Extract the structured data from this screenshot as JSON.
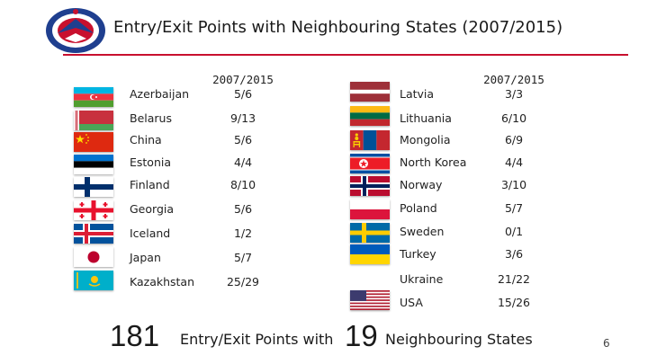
{
  "title": "Entry/Exit Points with Neighbouring States (2007/2015)",
  "column_header": "2007/2015",
  "left_column": [
    {
      "country": "Azerbaijan",
      "value": "5/6",
      "flag": "azerbaijan-flag"
    },
    {
      "country": "Belarus",
      "value": "9/13",
      "flag": "belarus-flag"
    },
    {
      "country": "China",
      "value": "5/6",
      "flag": "china-flag"
    },
    {
      "country": "Estonia",
      "value": "4/4",
      "flag": "estonia-flag"
    },
    {
      "country": "Finland",
      "value": "8/10",
      "flag": "finland-flag"
    },
    {
      "country": "Georgia",
      "value": "5/6",
      "flag": "georgia-flag"
    },
    {
      "country": "Iceland",
      "value": "1/2",
      "flag": "iceland-flag"
    },
    {
      "country": "Japan",
      "value": "5/7",
      "flag": "japan-flag"
    },
    {
      "country": "Kazakhstan",
      "value": "25/29",
      "flag": "kazakhstan-flag"
    }
  ],
  "right_column": [
    {
      "country": "Latvia",
      "value": "3/3",
      "flag": "latvia-flag"
    },
    {
      "country": "Lithuania",
      "value": "6/10",
      "flag": "lithuania-flag"
    },
    {
      "country": "Mongolia",
      "value": "6/9",
      "flag": "mongolia-flag"
    },
    {
      "country": "North Korea",
      "value": "4/4",
      "flag": "north-korea-flag"
    },
    {
      "country": "Norway",
      "value": "3/10",
      "flag": "norway-flag"
    },
    {
      "country": "Poland",
      "value": "5/7",
      "flag": "poland-flag"
    },
    {
      "country": "Sweden",
      "value": "0/1",
      "flag": "sweden-flag"
    },
    {
      "country": "Turkey",
      "value": "3/6",
      "flag": "turkey-flag"
    },
    {
      "country": "Ukraine",
      "value": "21/22",
      "flag": "ukraine-flag"
    },
    {
      "country": "USA",
      "value": "15/26",
      "flag": "usa-flag"
    }
  ],
  "summary": {
    "points_count": "181",
    "points_label": "Entry/Exit Points with",
    "states_count": "19",
    "states_label": "Neighbouring States"
  },
  "page_number": "6",
  "colors": {
    "accent_red": "#c8102e",
    "logo_blue": "#1f3f8f"
  }
}
